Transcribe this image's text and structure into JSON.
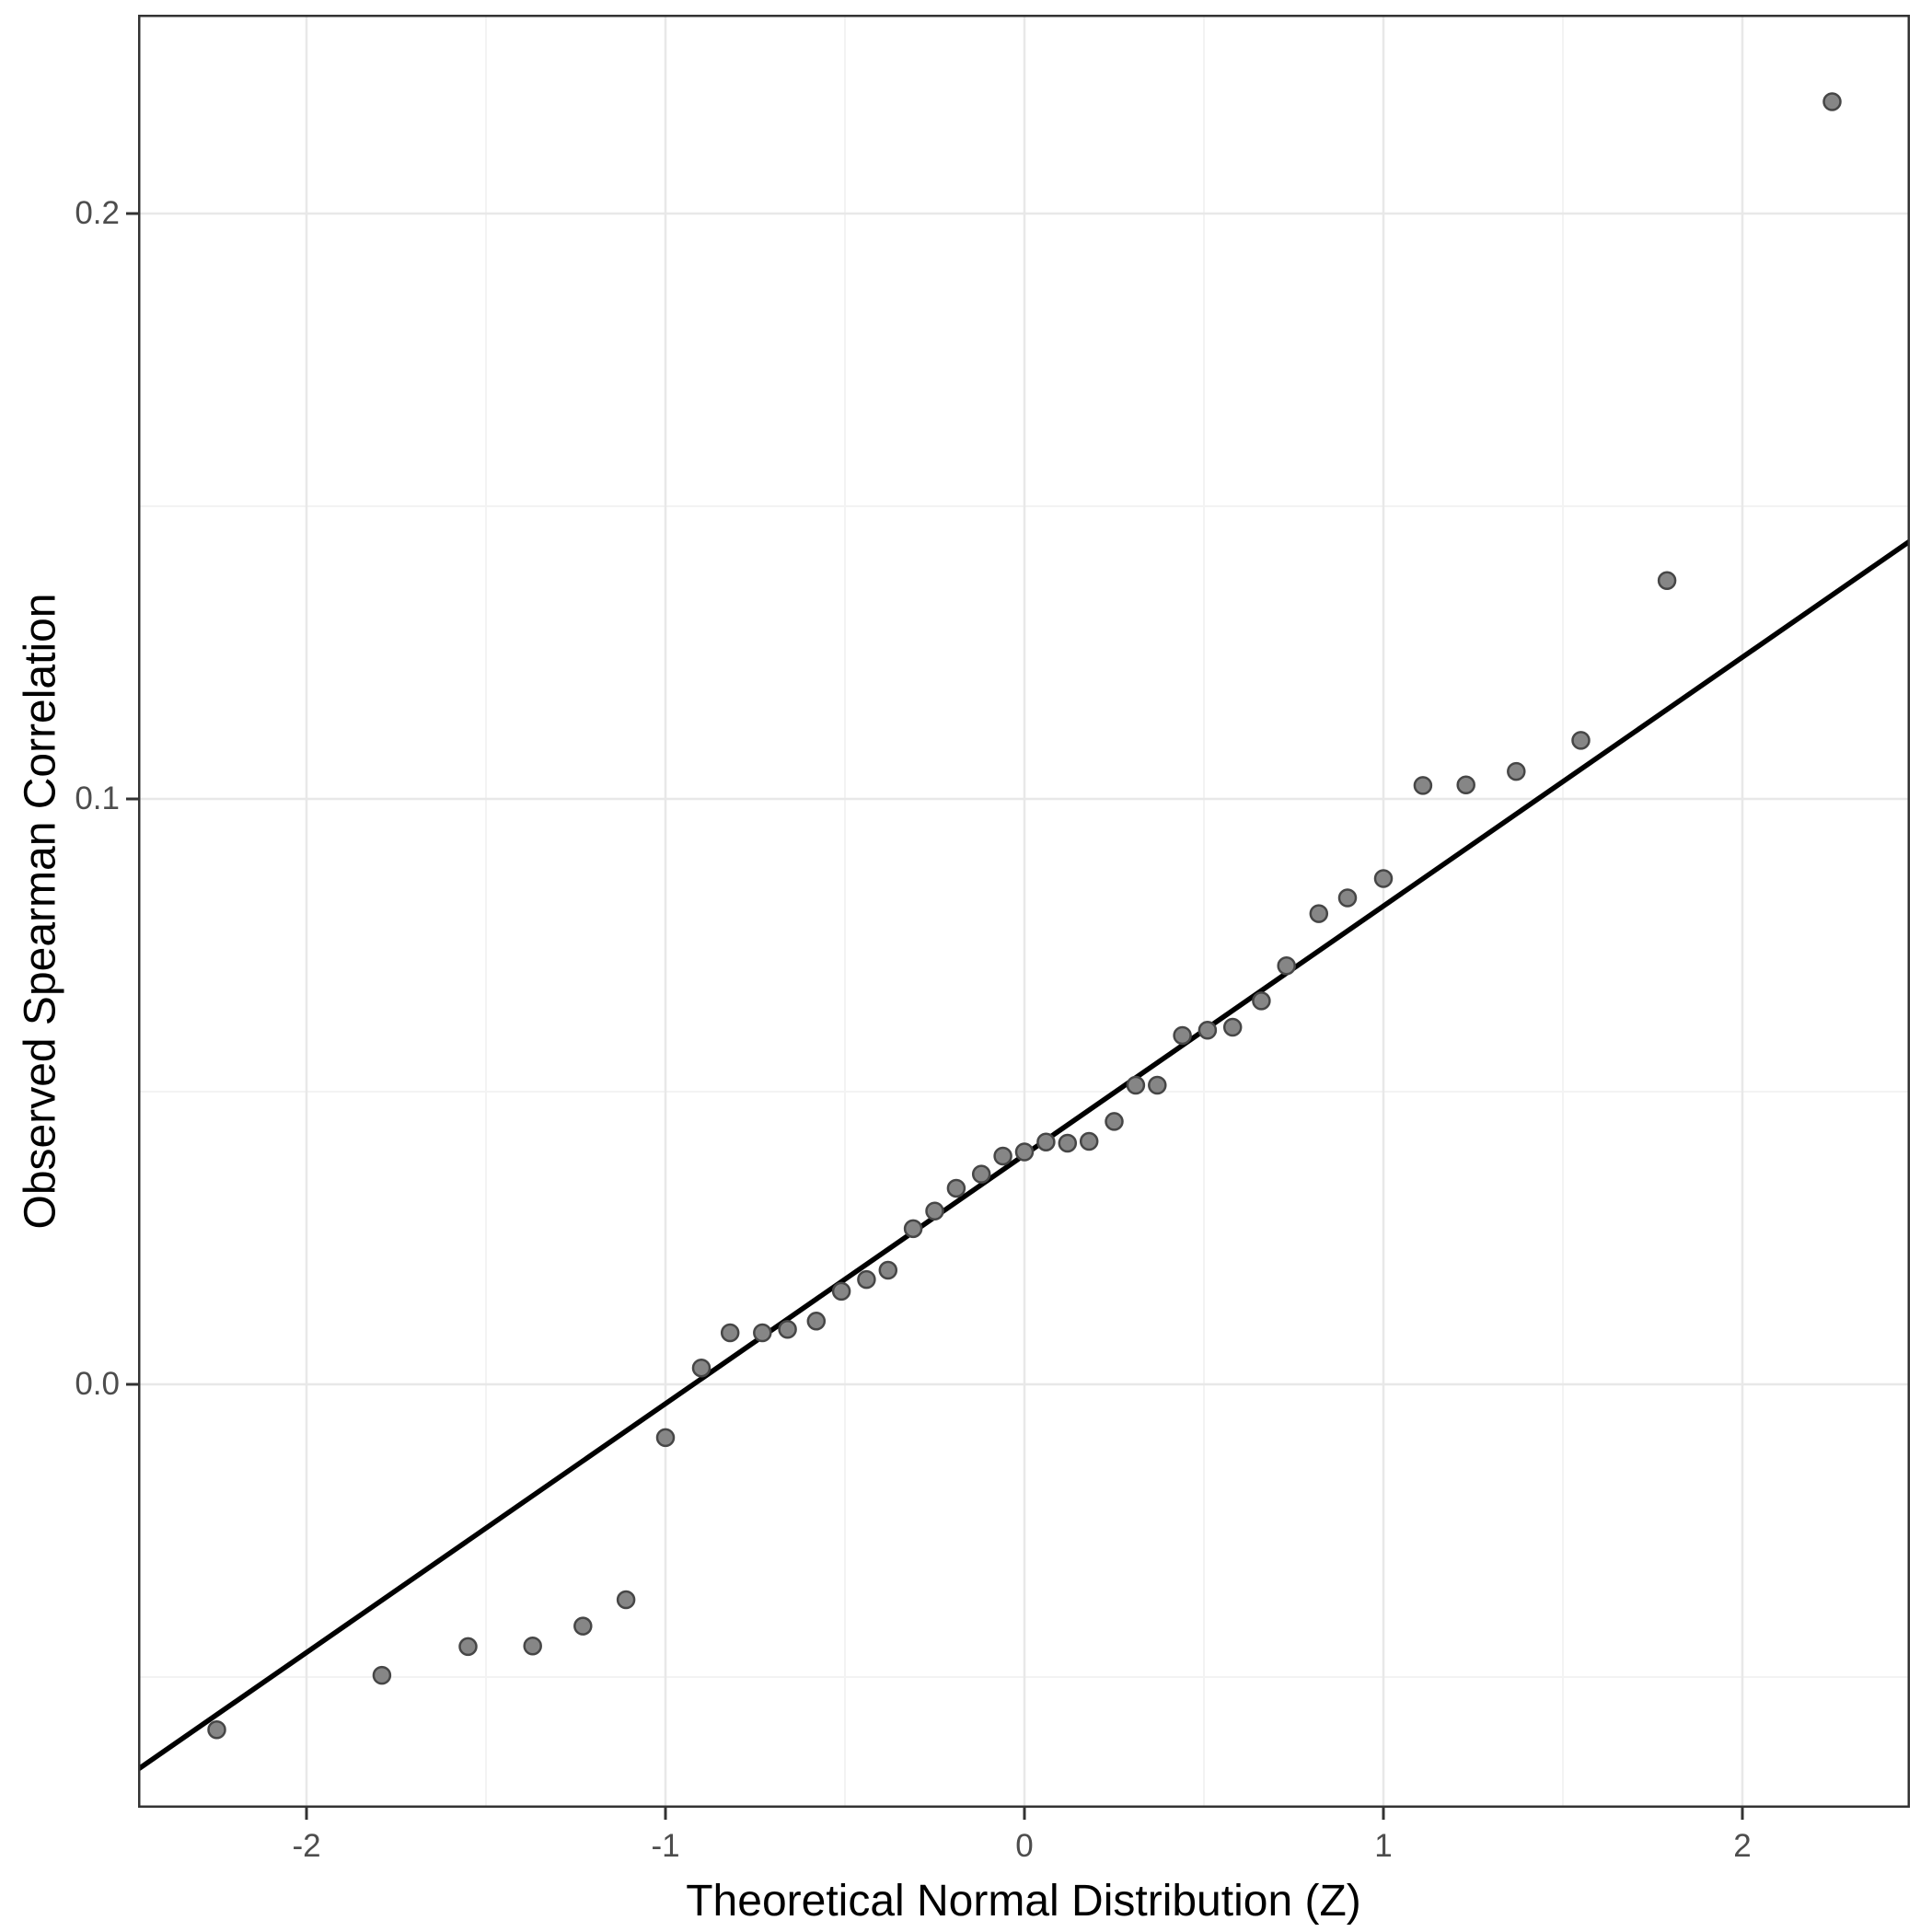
{
  "figure": {
    "kind": "ggplot-style QQ scatter plot",
    "background_color": "#ffffff"
  },
  "chart_data": {
    "type": "scatter",
    "title": "",
    "xlabel": "Theoretical Normal Distribution (Z)",
    "ylabel": "Observed Spearman Correlation",
    "xlim": [
      -2.468,
      2.468
    ],
    "ylim": [
      -0.0723,
      0.234
    ],
    "grid": true,
    "legend": false,
    "x_major_ticks": [
      -2,
      -1,
      0,
      1,
      2
    ],
    "x_tick_labels": [
      "-2",
      "-1",
      "0",
      "1",
      "2"
    ],
    "x_minor_ticks": [
      -1.5,
      -0.5,
      0.5,
      1.5
    ],
    "y_major_ticks": [
      0.0,
      0.1,
      0.2
    ],
    "y_tick_labels": [
      "0.0",
      "0.1",
      "0.2"
    ],
    "y_minor_ticks": [
      -0.05,
      0.05,
      0.15
    ],
    "points": [
      [
        -2.25,
        -0.059
      ],
      [
        -1.79,
        -0.0497
      ],
      [
        -1.55,
        -0.0448
      ],
      [
        -1.37,
        -0.0447
      ],
      [
        -1.23,
        -0.0413
      ],
      [
        -1.11,
        -0.0368
      ],
      [
        -1.0,
        -0.0091
      ],
      [
        -0.9,
        0.0028
      ],
      [
        -0.82,
        0.0088
      ],
      [
        -0.73,
        0.0088
      ],
      [
        -0.66,
        0.0094
      ],
      [
        -0.58,
        0.0108
      ],
      [
        -0.51,
        0.0159
      ],
      [
        -0.44,
        0.0179
      ],
      [
        -0.38,
        0.0195
      ],
      [
        -0.31,
        0.0266
      ],
      [
        -0.25,
        0.0296
      ],
      [
        -0.19,
        0.0335
      ],
      [
        -0.12,
        0.0359
      ],
      [
        -0.06,
        0.039
      ],
      [
        0.0,
        0.0397
      ],
      [
        0.06,
        0.0414
      ],
      [
        0.12,
        0.0412
      ],
      [
        0.18,
        0.0415
      ],
      [
        0.25,
        0.0449
      ],
      [
        0.31,
        0.0511
      ],
      [
        0.37,
        0.0511
      ],
      [
        0.44,
        0.0596
      ],
      [
        0.51,
        0.0605
      ],
      [
        0.58,
        0.061
      ],
      [
        0.66,
        0.0655
      ],
      [
        0.73,
        0.0715
      ],
      [
        0.82,
        0.0804
      ],
      [
        0.9,
        0.0831
      ],
      [
        1.0,
        0.0864
      ],
      [
        1.11,
        0.1023
      ],
      [
        1.23,
        0.1024
      ],
      [
        1.37,
        0.1047
      ],
      [
        1.55,
        0.11
      ],
      [
        1.79,
        0.1373
      ],
      [
        2.25,
        0.2191
      ]
    ],
    "reference_line": {
      "slope": 0.0425,
      "intercept": 0.0392,
      "x1": -2.468,
      "y1": -0.0657,
      "x2": 2.468,
      "y2": 0.1441
    },
    "style": {
      "point_fill": "#868686",
      "point_stroke": "#464646",
      "point_radius": 9,
      "point_stroke_width": 2.5,
      "line_color": "#000000",
      "line_width": 5.5,
      "major_grid_color": "#e8e8e8",
      "minor_grid_color": "#f3f3f3",
      "panel_border_color": "#333333",
      "tick_color": "#333333",
      "tick_label_color": "#4d4d4d",
      "axis_title_color": "#000000"
    }
  }
}
